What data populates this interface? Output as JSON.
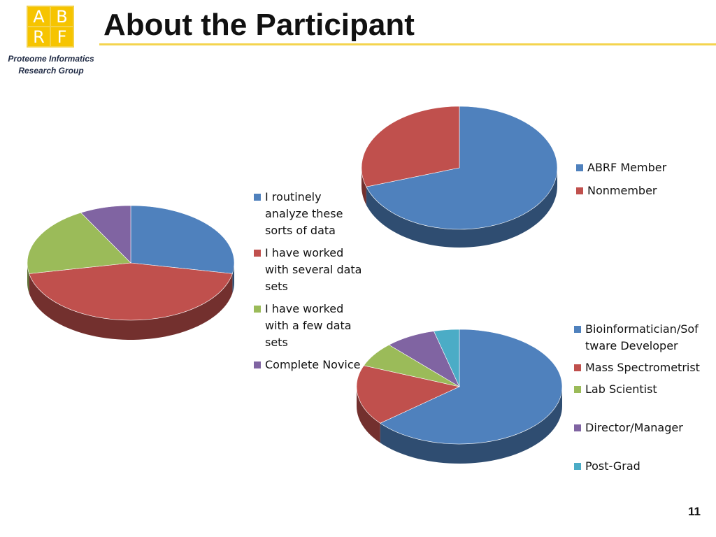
{
  "header": {
    "logo_letters": [
      "A",
      "B",
      "R",
      "F"
    ],
    "org_line1": "Proteome Informatics",
    "org_line2": "Research Group",
    "title": "About the Participant"
  },
  "page_number": "11",
  "chart_data": [
    {
      "type": "pie",
      "categories": [
        "I routinely analyze these sorts of data",
        "I have worked with several data sets",
        "I have worked with a few data sets",
        "Complete Novice"
      ],
      "values": [
        28,
        44,
        20,
        8
      ],
      "colors": [
        "#4f81bd",
        "#c0504d",
        "#9bbb59",
        "#8064a2"
      ],
      "legend": "right"
    },
    {
      "type": "pie",
      "categories": [
        "ABRF Member",
        "Nonmember"
      ],
      "values": [
        70,
        30
      ],
      "colors": [
        "#4f81bd",
        "#c0504d"
      ],
      "legend": "right"
    },
    {
      "type": "pie",
      "categories": [
        "Bioinformatician/Software Developer",
        "Mass Spectrometrist",
        "Lab Scientist",
        "Director/Manager",
        "Post-Grad"
      ],
      "values": [
        64,
        17,
        7,
        8,
        4
      ],
      "colors": [
        "#4f81bd",
        "#c0504d",
        "#9bbb59",
        "#8064a2",
        "#4bacc6"
      ],
      "legend": "right"
    }
  ]
}
